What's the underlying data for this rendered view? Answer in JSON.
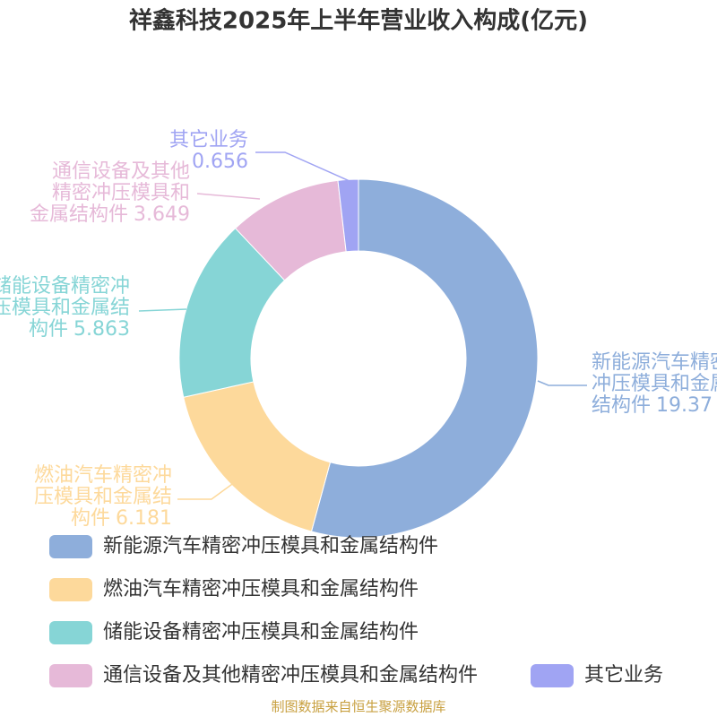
{
  "chart_data": {
    "type": "donut",
    "title": "祥鑫科技2025年上半年营业收入构成(亿元)",
    "categories": [
      "新能源汽车精密冲压模具和金属结构件",
      "燃油汽车精密冲压模具和金属结构件",
      "储能设备精密冲压模具和金属结构件",
      "通信设备及其他精密冲压模具和金属结构件",
      "其它业务"
    ],
    "values": [
      19.37,
      6.181,
      5.863,
      3.649,
      0.656
    ],
    "colors": [
      "#8eaedb",
      "#fdd99b",
      "#86d5d6",
      "#e6b9d8",
      "#a0a4f3"
    ],
    "source": "制图数据来自恒生聚源数据库"
  }
}
